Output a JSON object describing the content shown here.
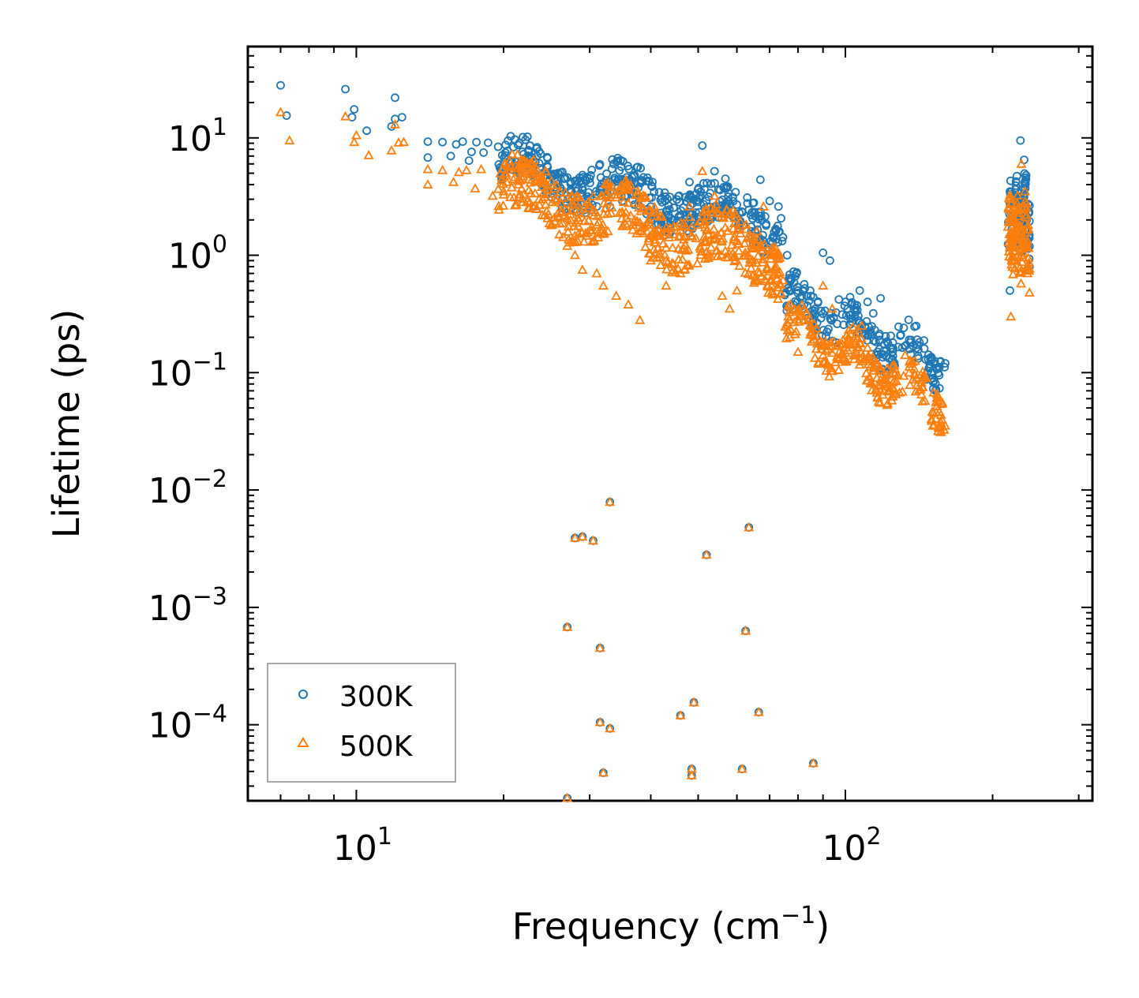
{
  "chart_data": {
    "type": "scatter",
    "x_scale": "log",
    "y_scale": "log",
    "xlabel": "Frequency (cm",
    "xlabel_sup": "−1",
    "xlabel_tail": ")",
    "ylabel": "Lifetime (ps)",
    "xlim": [
      6.0,
      320.0
    ],
    "ylim": [
      2.25e-05,
      60.0
    ],
    "x_ticks": [
      {
        "value": 10,
        "base": "10",
        "exp": "1"
      },
      {
        "value": 100,
        "base": "10",
        "exp": "2"
      }
    ],
    "y_ticks": [
      {
        "value": 10,
        "base": "10",
        "exp": "1"
      },
      {
        "value": 1,
        "base": "10",
        "exp": "0"
      },
      {
        "value": 0.1,
        "base": "10",
        "exp": "−1"
      },
      {
        "value": 0.01,
        "base": "10",
        "exp": "−2"
      },
      {
        "value": 0.001,
        "base": "10",
        "exp": "−3"
      },
      {
        "value": 0.0001,
        "base": "10",
        "exp": "−4"
      }
    ],
    "legend_position": "bottom-left",
    "colors": {
      "300K": "#1f77b4",
      "500K": "#ff7f0e"
    },
    "series": [
      {
        "name": "300K",
        "marker": "circle",
        "points": [
          [
            7.0,
            28
          ],
          [
            7.2,
            15.5
          ],
          [
            9.5,
            26
          ],
          [
            9.9,
            17.5
          ],
          [
            9.8,
            15
          ],
          [
            10.5,
            11.5
          ],
          [
            11.8,
            12.5
          ],
          [
            12.0,
            22
          ],
          [
            12.0,
            14.5
          ],
          [
            12.4,
            15
          ],
          [
            14.0,
            9.3
          ],
          [
            14.0,
            6.8
          ],
          [
            15.0,
            9.2
          ],
          [
            15.6,
            7
          ],
          [
            16.0,
            8.8
          ],
          [
            16.5,
            9.3
          ],
          [
            17.0,
            6.4
          ],
          [
            17.2,
            7.6
          ],
          [
            17.6,
            9.2
          ],
          [
            18.2,
            7.5
          ],
          [
            18.6,
            9.1
          ],
          [
            19.5,
            8.4
          ],
          [
            20.0,
            6
          ],
          [
            21.0,
            5.8
          ],
          [
            22.0,
            6.6
          ],
          [
            23.0,
            5.6
          ],
          [
            24.0,
            5.0
          ],
          [
            25.0,
            4.8
          ],
          [
            26.0,
            4.9
          ],
          [
            27.0,
            4.6
          ],
          [
            28.0,
            4.3
          ],
          [
            29.0,
            3.8
          ],
          [
            30.0,
            4.5
          ],
          [
            31.0,
            3.3
          ],
          [
            33.0,
            2.6
          ],
          [
            35.0,
            2.9
          ],
          [
            37.0,
            2.7
          ],
          [
            40.0,
            2.6
          ],
          [
            42.0,
            1.9
          ],
          [
            44.0,
            1.6
          ],
          [
            46.0,
            2.2
          ],
          [
            48.0,
            2.3
          ],
          [
            50.0,
            2.1
          ],
          [
            51.0,
            8.6
          ],
          [
            48.0,
            4.2
          ],
          [
            54.0,
            5.2
          ],
          [
            57.0,
            3.7
          ],
          [
            60.0,
            2.7
          ],
          [
            63.0,
            3.1
          ],
          [
            65.0,
            2.8
          ],
          [
            67.0,
            4.4
          ],
          [
            70.0,
            2.9
          ],
          [
            73.0,
            2.6
          ],
          [
            76.0,
            1.0
          ],
          [
            80.0,
            0.5
          ],
          [
            85.0,
            0.45
          ],
          [
            90.0,
            1.05
          ],
          [
            93.0,
            0.9
          ],
          [
            97.0,
            0.42
          ],
          [
            103.0,
            0.38
          ],
          [
            107.0,
            0.5
          ],
          [
            111.0,
            0.4
          ],
          [
            114.0,
            0.32
          ],
          [
            118.0,
            0.43
          ],
          [
            125.0,
            0.18
          ],
          [
            135.0,
            0.19
          ],
          [
            145.0,
            0.16
          ],
          [
            160.0,
            0.12
          ],
          [
            217.0,
            0.5
          ],
          [
            225.0,
            3.0
          ],
          [
            228.0,
            9.5
          ],
          [
            232.0,
            6.5
          ],
          [
            236.0,
            1.2
          ],
          [
            238.0,
            0.8
          ],
          [
            28.0,
            0.0039
          ],
          [
            29.0,
            0.004
          ],
          [
            30.5,
            0.0037
          ],
          [
            33.0,
            0.0079
          ],
          [
            52.0,
            0.0028
          ],
          [
            63.5,
            0.0048
          ],
          [
            27.0,
            0.00068
          ],
          [
            62.5,
            0.00063
          ],
          [
            31.5,
            0.00045
          ],
          [
            49.0,
            0.000155
          ],
          [
            66.5,
            0.000128
          ],
          [
            46.0,
            0.00012
          ],
          [
            31.5,
            0.000105
          ],
          [
            33.0,
            9.3e-05
          ],
          [
            32.0,
            3.9e-05
          ],
          [
            48.5,
            4.2e-05
          ],
          [
            48.5,
            3.7e-05
          ],
          [
            61.5,
            4.2e-05
          ],
          [
            86.0,
            4.7e-05
          ],
          [
            27.0,
            2.37e-05
          ]
        ]
      },
      {
        "name": "500K",
        "marker": "triangle",
        "points": [
          [
            7.0,
            16.5
          ],
          [
            7.3,
            9.5
          ],
          [
            9.5,
            15.2
          ],
          [
            10.0,
            10.5
          ],
          [
            9.9,
            9.2
          ],
          [
            10.6,
            7.1
          ],
          [
            11.8,
            7.8
          ],
          [
            12.0,
            13
          ],
          [
            12.2,
            9.1
          ],
          [
            12.5,
            9.2
          ],
          [
            14.0,
            5.4
          ],
          [
            14.0,
            4.0
          ],
          [
            15.0,
            5.3
          ],
          [
            15.8,
            4.2
          ],
          [
            16.2,
            5.1
          ],
          [
            16.8,
            5.3
          ],
          [
            17.5,
            3.7
          ],
          [
            18.0,
            5.4
          ],
          [
            19.0,
            3.2
          ],
          [
            20.0,
            3.5
          ],
          [
            21.0,
            3.1
          ],
          [
            22.0,
            3.3
          ],
          [
            23.0,
            2.6
          ],
          [
            24.0,
            2.2
          ],
          [
            25.0,
            1.8
          ],
          [
            26.0,
            1.5
          ],
          [
            27.0,
            1.2
          ],
          [
            28.0,
            1.0
          ],
          [
            29.0,
            0.75
          ],
          [
            31.0,
            0.7
          ],
          [
            32.0,
            0.55
          ],
          [
            34.0,
            0.45
          ],
          [
            36.0,
            0.38
          ],
          [
            38.0,
            0.28
          ],
          [
            40.0,
            0.9
          ],
          [
            43.0,
            0.55
          ],
          [
            46.0,
            0.7
          ],
          [
            48.0,
            2.6
          ],
          [
            51.0,
            5.2
          ],
          [
            54.0,
            3.2
          ],
          [
            56.0,
            0.45
          ],
          [
            58.0,
            0.35
          ],
          [
            60.0,
            0.5
          ],
          [
            63.0,
            1.4
          ],
          [
            66.0,
            1.6
          ],
          [
            68.0,
            2.6
          ],
          [
            70.0,
            1.0
          ],
          [
            73.0,
            0.7
          ],
          [
            77.0,
            0.2
          ],
          [
            80.0,
            0.15
          ],
          [
            85.0,
            0.22
          ],
          [
            90.0,
            0.55
          ],
          [
            94.0,
            0.35
          ],
          [
            99.0,
            0.13
          ],
          [
            104.0,
            0.14
          ],
          [
            108.0,
            0.25
          ],
          [
            112.0,
            0.13
          ],
          [
            116.0,
            0.09
          ],
          [
            120.0,
            0.07
          ],
          [
            128.0,
            0.095
          ],
          [
            135.0,
            0.1
          ],
          [
            143.0,
            0.065
          ],
          [
            150.0,
            0.04
          ],
          [
            158.0,
            0.055
          ],
          [
            218.0,
            0.3
          ],
          [
            224.0,
            1.8
          ],
          [
            229.0,
            6.0
          ],
          [
            233.0,
            3.5
          ],
          [
            236.0,
            0.75
          ],
          [
            238.0,
            0.48
          ],
          [
            28.0,
            0.0039
          ],
          [
            29.0,
            0.004
          ],
          [
            30.5,
            0.0037
          ],
          [
            33.0,
            0.0079
          ],
          [
            52.0,
            0.0028
          ],
          [
            63.5,
            0.0048
          ],
          [
            27.0,
            0.00068
          ],
          [
            62.5,
            0.00063
          ],
          [
            31.5,
            0.00045
          ],
          [
            49.0,
            0.000155
          ],
          [
            66.5,
            0.000128
          ],
          [
            46.0,
            0.00012
          ],
          [
            31.5,
            0.000105
          ],
          [
            33.0,
            9.3e-05
          ],
          [
            32.0,
            3.9e-05
          ],
          [
            48.5,
            4.2e-05
          ],
          [
            48.5,
            3.7e-05
          ],
          [
            61.5,
            4.2e-05
          ],
          [
            86.0,
            4.7e-05
          ],
          [
            27.0,
            2.37e-05
          ]
        ]
      }
    ],
    "dense_clusters": [
      {
        "series": "300K",
        "x_range": [
          19.5,
          75
        ],
        "log_y_start": 0.78,
        "log_y_end": 0.25,
        "spread": 0.35,
        "count": 420
      },
      {
        "series": "500K",
        "x_range": [
          19.5,
          75
        ],
        "log_y_start": 0.58,
        "log_y_end": -0.05,
        "spread": 0.45,
        "count": 520
      },
      {
        "series": "300K",
        "x_range": [
          75,
          160
        ],
        "log_y_start": -0.35,
        "log_y_end": -0.95,
        "spread": 0.32,
        "count": 220
      },
      {
        "series": "500K",
        "x_range": [
          75,
          160
        ],
        "log_y_start": -0.6,
        "log_y_end": -1.25,
        "spread": 0.32,
        "count": 240
      },
      {
        "series": "300K",
        "x_range": [
          215,
          238
        ],
        "log_y_start": 0.35,
        "log_y_end": 0.35,
        "spread": 0.55,
        "count": 110
      },
      {
        "series": "500K",
        "x_range": [
          215,
          238
        ],
        "log_y_start": 0.15,
        "log_y_end": 0.15,
        "spread": 0.55,
        "count": 120
      }
    ]
  }
}
